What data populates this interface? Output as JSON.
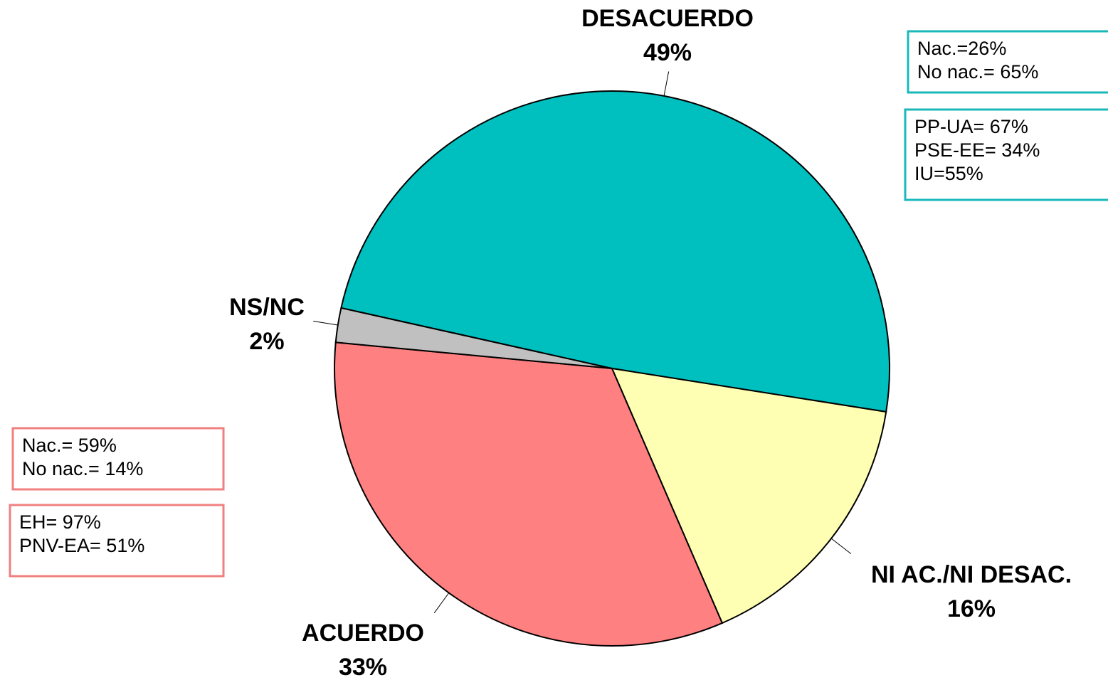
{
  "chart_data": {
    "type": "pie",
    "categories": [
      "DESACUERDO",
      "NI AC./NI DESAC.",
      "ACUERDO",
      "NS/NC"
    ],
    "values": [
      49,
      16,
      33,
      2
    ],
    "value_labels": [
      "49%",
      "16%",
      "33%",
      "2%"
    ],
    "colors": [
      "#00BFBF",
      "#FFFFB3",
      "#FF8080",
      "#C0C0C0"
    ],
    "annotations": [
      {
        "color": "#1AB8B8",
        "lines": [
          "Nac.=26%",
          "No nac.= 65%"
        ]
      },
      {
        "color": "#1AB8B8",
        "lines": [
          "PP-UA= 67%",
          "PSE-EE= 34%",
          "IU=55%"
        ]
      },
      {
        "color": "#F08080",
        "lines": [
          "Nac.= 59%",
          "No nac.= 14%"
        ]
      },
      {
        "color": "#F08080",
        "lines": [
          "EH= 97%",
          "PNV-EA= 51%"
        ]
      }
    ]
  }
}
